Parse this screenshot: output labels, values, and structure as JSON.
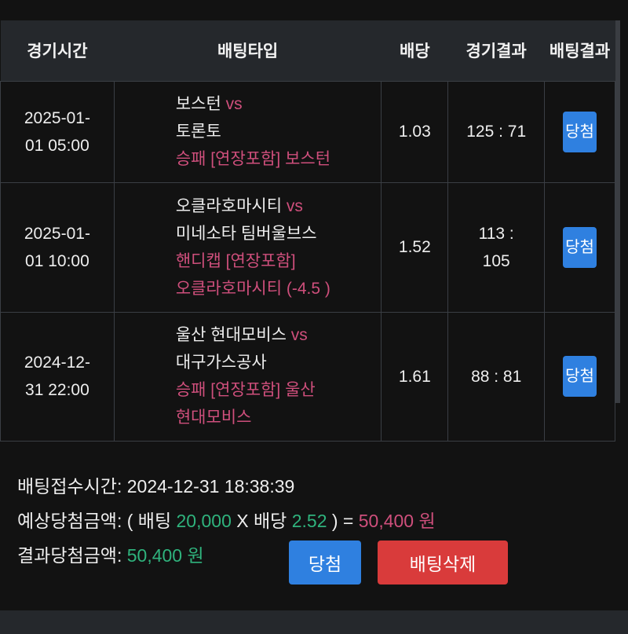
{
  "table": {
    "headers": [
      "경기시간",
      "배팅타입",
      "배당",
      "경기결과",
      "배팅결과"
    ],
    "rows": [
      {
        "time_1": "2025-01-",
        "time_2": "01 05:00",
        "home": "보스턴",
        "vs": "vs",
        "away": "토론토",
        "bet_1": "승패 [연장포함] 보스턴",
        "bet_2": "",
        "odds": "1.03",
        "score_1": "125 : 71",
        "score_2": "",
        "result": "당첨"
      },
      {
        "time_1": "2025-01-",
        "time_2": "01 10:00",
        "home": "오클라호마시티",
        "vs": "vs",
        "away": "미네소타 팀버울브스",
        "bet_1": "핸디캡 [연장포함]",
        "bet_2": "오클라호마시티 (-4.5 )",
        "odds": "1.52",
        "score_1": "113 :",
        "score_2": "105",
        "result": "당첨"
      },
      {
        "time_1": "2024-12-",
        "time_2": "31 22:00",
        "home": "울산 현대모비스",
        "vs": "vs",
        "away": "대구가스공사",
        "bet_1": "승패 [연장포함] 울산",
        "bet_2": "현대모비스",
        "odds": "1.61",
        "score_1": "88 : 81",
        "score_2": "",
        "result": "당첨"
      }
    ]
  },
  "summary": {
    "time_label": "배팅접수시간:",
    "time_value": "2024-12-31 18:38:39",
    "expected_label": "예상당첨금액:",
    "open": "( 배팅",
    "stake": "20,000",
    "x": "X 배당",
    "odds": "2.52",
    "close": ") =",
    "expected_value": "50,400 원",
    "result_label": "결과당첨금액:",
    "result_value": "50,400 원",
    "win_button": "당첨",
    "delete_button": "배팅삭제"
  },
  "colors": {
    "accent_pink": "#cf4f7c",
    "accent_green": "#2fb37d",
    "win_blue": "#2f80e0",
    "delete_red": "#d93b3b"
  }
}
